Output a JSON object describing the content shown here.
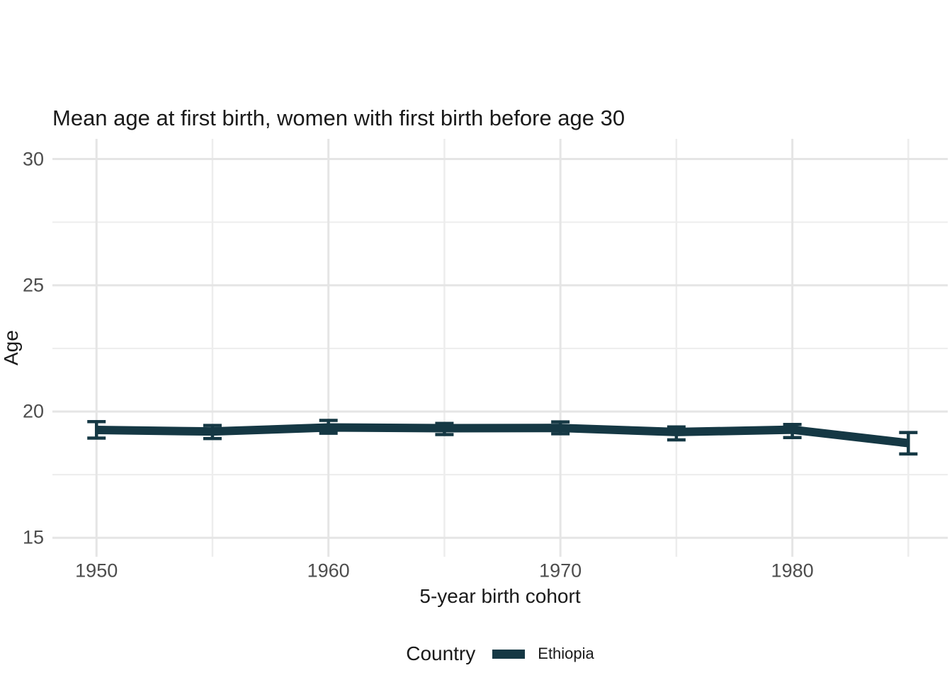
{
  "page": {
    "background": "#ffffff"
  },
  "chart": {
    "title": "Mean age at first birth, women with first birth before age 30",
    "x_axis_title": "5-year birth cohort",
    "y_axis_title": "Age",
    "legend": {
      "title": "Country",
      "position": "bottom",
      "items": [
        {
          "label": "Ethiopia",
          "color": "#153844"
        }
      ]
    }
  },
  "chart_data": {
    "type": "line",
    "title": "Mean age at first birth, women with first birth before age 30",
    "xlabel": "5-year birth cohort",
    "ylabel": "Age",
    "xlim": [
      1948.1,
      1986.7
    ],
    "ylim": [
      14.25,
      30.8
    ],
    "grid": {
      "show": true,
      "major_color": "#e5e5e5",
      "minor_color": "#ededed"
    },
    "x_major_ticks": [
      1950,
      1960,
      1970,
      1980
    ],
    "x_major_tick_labels": [
      "1950",
      "1960",
      "1970",
      "1980"
    ],
    "x_minor_gridlines": [
      1955,
      1965,
      1975,
      1985
    ],
    "y_major_ticks": [
      15,
      20,
      25,
      30
    ],
    "y_major_tick_labels": [
      "15",
      "20",
      "25",
      "30"
    ],
    "y_minor_gridlines": [
      17.5,
      22.5,
      27.5
    ],
    "legend_position": "bottom",
    "series": [
      {
        "name": "Ethiopia",
        "color": "#153844",
        "line_width": 12,
        "x": [
          1950,
          1955,
          1960,
          1965,
          1970,
          1975,
          1980,
          1985
        ],
        "y": [
          19.27,
          19.21,
          19.37,
          19.34,
          19.35,
          19.19,
          19.28,
          18.75
        ],
        "error_bars": true,
        "y_low": [
          18.95,
          18.93,
          19.14,
          19.09,
          19.12,
          18.88,
          18.97,
          18.32
        ],
        "y_high": [
          19.6,
          19.45,
          19.65,
          19.53,
          19.59,
          19.39,
          19.49,
          19.17
        ]
      }
    ]
  }
}
